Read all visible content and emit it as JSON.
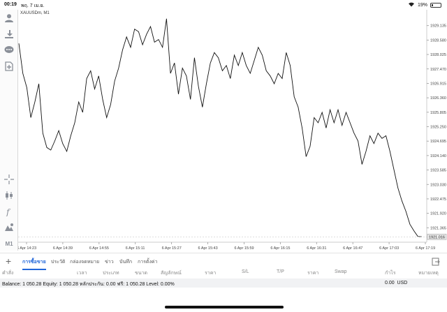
{
  "status_bar": {
    "time": "00:19",
    "date": "พฤ. 7 เม.ย.",
    "battery": "19%",
    "battery_level": 0.19
  },
  "toolbar": {
    "icons": [
      "account-icon",
      "trade-icon",
      "chat-icon",
      "add-document-icon",
      "crosshair-icon",
      "candlestick-icon",
      "function-icon",
      "objects-icon"
    ],
    "timeframe": "M1"
  },
  "chart": {
    "symbol_label": "XAUUSDm, M1",
    "current_price": "1921.016",
    "colors": {
      "line": "#111111",
      "grid": "#eeeeee",
      "price_tag": "#e8e8e8"
    }
  },
  "chart_data": {
    "type": "line",
    "title": "",
    "xlabel": "",
    "ylabel": "",
    "x_ticks": [
      "6 Apr 14:23",
      "6 Apr 14:39",
      "6 Apr 14:55",
      "6 Apr 15:11",
      "6 Apr 15:27",
      "6 Apr 15:43",
      "6 Apr 15:59",
      "6 Apr 16:15",
      "6 Apr 16:31",
      "6 Apr 16:47",
      "6 Apr 17:03",
      "6 Apr 17:19"
    ],
    "y_ticks": [
      "1929.135",
      "1928.580",
      "1928.025",
      "1927.470",
      "1926.915",
      "1926.360",
      "1925.805",
      "1925.250",
      "1924.695",
      "1924.140",
      "1923.585",
      "1923.030",
      "1922.475",
      "1921.920",
      "1921.365"
    ],
    "ylim": [
      1920.81,
      1929.69
    ],
    "grid": false,
    "series": [
      {
        "values": [
          1928.45,
          1927.3,
          1926.75,
          1925.6,
          1926.2,
          1926.9,
          1925.0,
          1924.45,
          1924.35,
          1924.7,
          1925.1,
          1924.6,
          1924.3,
          1924.9,
          1925.4,
          1926.2,
          1925.8,
          1927.1,
          1927.4,
          1926.7,
          1927.2,
          1926.3,
          1925.6,
          1926.1,
          1927.0,
          1927.5,
          1928.2,
          1928.7,
          1928.3,
          1929.0,
          1928.9,
          1928.4,
          1928.8,
          1929.1,
          1928.5,
          1928.6,
          1928.3,
          1929.4,
          1927.3,
          1927.7,
          1926.5,
          1927.5,
          1927.2,
          1926.3,
          1927.9,
          1926.8,
          1926.0,
          1926.9,
          1927.7,
          1928.1,
          1927.9,
          1927.4,
          1927.6,
          1927.1,
          1928.0,
          1927.6,
          1928.1,
          1927.6,
          1927.3,
          1927.8,
          1928.3,
          1928.0,
          1927.4,
          1927.2,
          1926.9,
          1927.3,
          1927.1,
          1928.1,
          1927.6,
          1926.4,
          1926.0,
          1925.2,
          1924.1,
          1924.5,
          1925.6,
          1925.4,
          1925.8,
          1925.2,
          1925.9,
          1925.4,
          1925.9,
          1925.3,
          1925.8,
          1925.4,
          1925.0,
          1924.7,
          1923.8,
          1924.3,
          1924.9,
          1924.6,
          1925.0,
          1924.8,
          1924.9,
          1924.3,
          1923.6,
          1922.9,
          1922.4,
          1922.0,
          1921.5,
          1921.25,
          1921.03,
          1921.02
        ]
      }
    ]
  },
  "bottom_panel": {
    "add_label": "+",
    "tabs": [
      "การซื้อขาย",
      "ประวัติ",
      "กล่องจดหมาย",
      "ข่าว",
      "บันทึก",
      "การตั้งค่า"
    ],
    "active_tab": 0,
    "columns": [
      "คำสั่ง",
      "เวลา",
      "ประเภท",
      "ขนาด",
      "สัญลักษณ์",
      "ราคา",
      "S/L",
      "T/P",
      "ราคา",
      "Swap",
      "กำไร",
      "หมายเหตุ"
    ],
    "balance_text": "Balance: 1 050.28 Equity: 1 050.28 หลักประกัน: 0.00 ฟรี: 1 050.28 Level: 0.00%",
    "profit": "0.00",
    "currency": "USD"
  }
}
